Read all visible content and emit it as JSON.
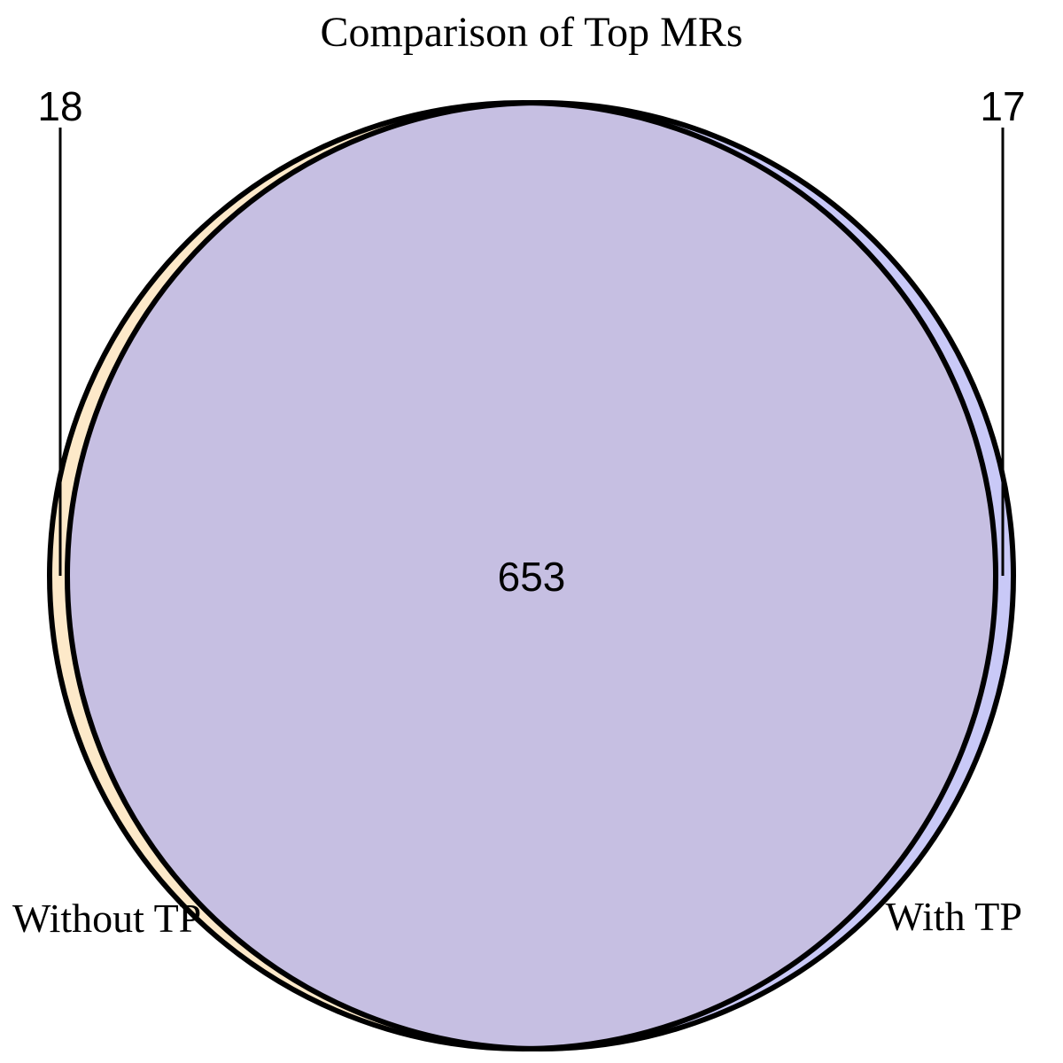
{
  "title": "Comparison of Top MRs",
  "sets": [
    {
      "label": "Without TP",
      "only_count": "18",
      "color": "#fde9c9"
    },
    {
      "label": "With TP",
      "only_count": "17",
      "color": "#c9c9f7"
    }
  ],
  "intersection": {
    "count": "653",
    "color": "#c6bfe2"
  },
  "outline_color": "#000000"
}
